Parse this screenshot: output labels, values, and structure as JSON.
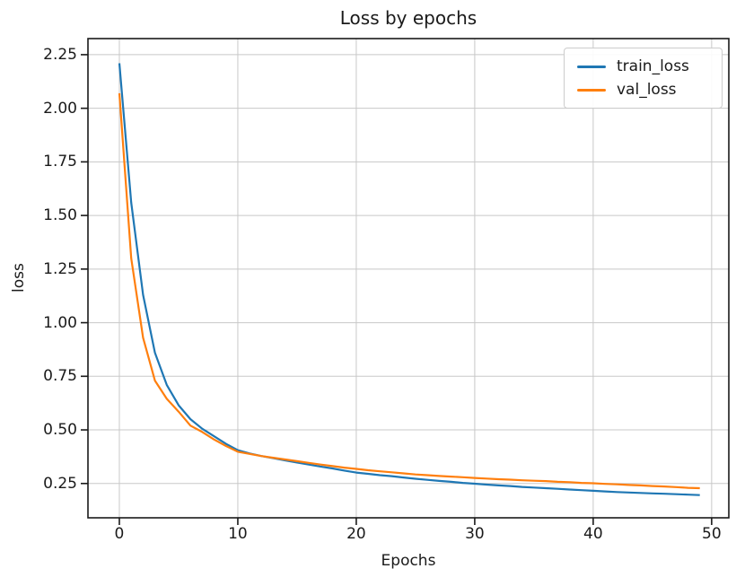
{
  "figure": {
    "background": "#ffffff",
    "text_color": "#1a1a1a",
    "grid_color": "#c8c8c8",
    "spine_color": "#1a1a1a"
  },
  "chart_data": {
    "type": "line",
    "title": "Loss by epochs",
    "xlabel": "Epochs",
    "ylabel": "loss",
    "grid": true,
    "legend_position": "upper right",
    "xlim": [
      -2.65,
      51.45
    ],
    "ylim": [
      0.09,
      2.325
    ],
    "xticks": [
      {
        "value": 0,
        "label": "0"
      },
      {
        "value": 10,
        "label": "10"
      },
      {
        "value": 20,
        "label": "20"
      },
      {
        "value": 30,
        "label": "30"
      },
      {
        "value": 40,
        "label": "40"
      },
      {
        "value": 50,
        "label": "50"
      }
    ],
    "yticks": [
      {
        "value": 0.25,
        "label": "0.25"
      },
      {
        "value": 0.5,
        "label": "0.50"
      },
      {
        "value": 0.75,
        "label": "0.75"
      },
      {
        "value": 1.0,
        "label": "1.00"
      },
      {
        "value": 1.25,
        "label": "1.25"
      },
      {
        "value": 1.5,
        "label": "1.50"
      },
      {
        "value": 1.75,
        "label": "1.75"
      },
      {
        "value": 2.0,
        "label": "2.00"
      },
      {
        "value": 2.25,
        "label": "2.25"
      }
    ],
    "x": [
      0,
      1,
      2,
      3,
      4,
      5,
      6,
      7,
      8,
      9,
      10,
      11,
      12,
      13,
      14,
      15,
      16,
      17,
      18,
      19,
      20,
      21,
      22,
      23,
      24,
      25,
      26,
      27,
      28,
      29,
      30,
      31,
      32,
      33,
      34,
      35,
      36,
      37,
      38,
      39,
      40,
      41,
      42,
      43,
      44,
      45,
      46,
      47,
      48,
      49
    ],
    "series": [
      {
        "name": "train_loss",
        "color": "#1f77b4",
        "values": [
          2.21,
          1.56,
          1.13,
          0.86,
          0.71,
          0.615,
          0.55,
          0.505,
          0.47,
          0.435,
          0.405,
          0.39,
          0.378,
          0.368,
          0.358,
          0.348,
          0.338,
          0.329,
          0.32,
          0.31,
          0.301,
          0.295,
          0.289,
          0.284,
          0.278,
          0.272,
          0.267,
          0.262,
          0.258,
          0.253,
          0.249,
          0.245,
          0.241,
          0.238,
          0.234,
          0.231,
          0.228,
          0.225,
          0.222,
          0.219,
          0.216,
          0.213,
          0.21,
          0.208,
          0.206,
          0.204,
          0.202,
          0.2,
          0.198,
          0.196
        ]
      },
      {
        "name": "val_loss",
        "color": "#ff7f0e",
        "values": [
          2.07,
          1.3,
          0.93,
          0.73,
          0.645,
          0.585,
          0.52,
          0.49,
          0.455,
          0.425,
          0.398,
          0.388,
          0.378,
          0.37,
          0.362,
          0.354,
          0.346,
          0.338,
          0.331,
          0.324,
          0.318,
          0.312,
          0.307,
          0.302,
          0.297,
          0.292,
          0.289,
          0.285,
          0.282,
          0.279,
          0.276,
          0.273,
          0.27,
          0.268,
          0.265,
          0.263,
          0.261,
          0.258,
          0.256,
          0.253,
          0.251,
          0.248,
          0.246,
          0.243,
          0.241,
          0.238,
          0.236,
          0.233,
          0.23,
          0.228
        ]
      }
    ]
  }
}
